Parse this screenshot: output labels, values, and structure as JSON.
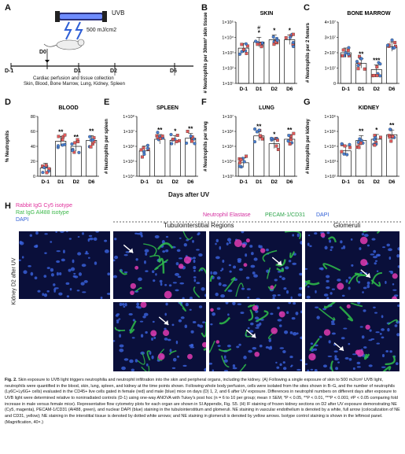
{
  "panelA": {
    "label": "A",
    "uvb": "UVB",
    "dose": "500 mJ/cm2",
    "d0": "D0",
    "days": [
      "D-1",
      "D1",
      "D2",
      "D6"
    ],
    "note1": "Cardiac perfusion and tissue collection",
    "note2": "Skin, Blood, Bone Marrow, Lung, Kidney, Spleen"
  },
  "days_after_uv": "Days after UV",
  "chart_data": [
    {
      "panel": "B",
      "type": "scatter",
      "title": "SKIN",
      "ylabel": "# Neutrophils per 30mm² skin tissue",
      "scale": "log",
      "ylim": [
        10,
        100000
      ],
      "yticks": [
        "1×10⁵",
        "1×10⁴",
        "1×10³",
        "1×10²",
        "1×10¹"
      ],
      "categories": [
        "D-1",
        "D1",
        "D2",
        "D6"
      ],
      "means": [
        2000,
        5000,
        7000,
        7000
      ],
      "sig": [
        "",
        "*",
        "*",
        "*"
      ],
      "extra_sig": [
        "",
        "#",
        "",
        ""
      ]
    },
    {
      "panel": "C",
      "type": "scatter",
      "title": "BONE MARROW",
      "ylabel": "# Neutrophils per 2 femurs",
      "scale": "linear",
      "ylim": [
        0,
        40000000
      ],
      "yticks": [
        "4×10⁷",
        "3×10⁷",
        "2×10⁷",
        "1×10⁷",
        "0"
      ],
      "categories": [
        "D-1",
        "D1",
        "D2",
        "D6"
      ],
      "means": [
        20000000,
        13000000,
        9000000,
        24000000
      ],
      "sig": [
        "",
        "**",
        "***",
        ""
      ]
    },
    {
      "panel": "D",
      "type": "scatter",
      "title": "BLOOD",
      "ylabel": "% Neutrophils",
      "scale": "linear",
      "ylim": [
        0,
        80
      ],
      "yticks": [
        "80",
        "60",
        "40",
        "20",
        "0"
      ],
      "categories": [
        "D-1",
        "D1",
        "D2",
        "D6"
      ],
      "means": [
        11,
        47,
        40,
        48
      ],
      "sig": [
        "",
        "**",
        "**",
        "**"
      ]
    },
    {
      "panel": "E",
      "type": "scatter",
      "title": "SPLEEN",
      "ylabel": "# Neutrophils per spleen",
      "scale": "log",
      "ylim": [
        10000,
        100000000
      ],
      "yticks": [
        "1×10⁸",
        "1×10⁷",
        "1×10⁶",
        "1×10⁵",
        "1×10⁴"
      ],
      "categories": [
        "D-1",
        "D1",
        "D2",
        "D6"
      ],
      "means": [
        500000,
        3000000,
        2500000,
        3500000
      ],
      "sig": [
        "",
        "**",
        "*",
        "**"
      ]
    },
    {
      "panel": "F",
      "type": "scatter",
      "title": "LUNG",
      "ylabel": "# Neutrophils per lung",
      "scale": "log",
      "ylim": [
        1000,
        10000000
      ],
      "yticks": [
        "1×10⁷",
        "1×10⁶",
        "1×10⁵",
        "1×10⁴",
        "1×10³"
      ],
      "categories": [
        "D-1",
        "D1",
        "D2",
        "D6"
      ],
      "means": [
        8000,
        500000,
        150000,
        300000
      ],
      "sig": [
        "",
        "**",
        "*",
        "**"
      ]
    },
    {
      "panel": "G",
      "type": "scatter",
      "title": "KIDNEY",
      "ylabel": "# Neutrophils per kidney",
      "scale": "log",
      "ylim": [
        100,
        1000000
      ],
      "yticks": [
        "1×10⁶",
        "1×10⁵",
        "1×10⁴",
        "1×10³",
        "1×10²"
      ],
      "categories": [
        "D-1",
        "D1",
        "D2",
        "D6"
      ],
      "means": [
        5000,
        25000,
        30000,
        60000
      ],
      "sig": [
        "",
        "**",
        "*",
        "**"
      ]
    }
  ],
  "panelH": {
    "label": "H",
    "legend_left": [
      "Rabbit IgG Cy5 isotype",
      "Rat IgG Al488 isotype",
      "DAPI"
    ],
    "legend_left_colors": [
      "#e0309c",
      "#3cb84a",
      "#2f5fd6"
    ],
    "legend_top": [
      "Neutrophil Elastase",
      "PECAM-1/CD31",
      "DAPI"
    ],
    "legend_top_colors": [
      "#d42fa0",
      "#2da44a",
      "#2f5fd6"
    ],
    "region1": "Tubulointerstitial Regions",
    "region2": "Glomeruli",
    "row_label": "Kidney D2 after UV"
  },
  "caption": {
    "lead": "Fig. 2.",
    "text1": "Skin exposure to UVB light triggers neutrophilia and neutrophil infiltration into the skin and peripheral organs, including the kidney. (A) Following a single exposure of skin to 500 mJ/cm² UVB light, neutrophils were quantified in the blood, skin, lung, spleen, and kidney at the time points shown. Following whole body perfusion, cells were isolated from the sites shown in B–G, and the number of neutrophils (Ly6C+Ly6G+ cells) evaluated in the CD45+ live cells gated in female (red) and male (blue) mice on days (D) 1, 2, and 6 after UV exposure. Differences in neutrophil numbers on different days after exposure to UVB light were determined relative to nonirradiated controls (D-1) using one-way ANOVA with Tukey's post hoc (n = 6 to 10 per group; mean ± SEM; *P < 0.05, **P < 0.01, ***P < 0.001; #P < 0.05 comparing fold increase in male versus female mice). Representative flow cytometry plots for each organ are shown in SI Appendix, Fig. S5. (H) IF staining of frozen kidney sections on D2 after UV exposure demonstrating NE (Cy5, magenta), PECAM-1/CD31 (Al488, green), and nuclear DAPI (blue) staining in the tubulointerstitium and glomeruli. NE staining in vascular endothelium is denoted by a white, full arrow (colocalization of NE and CD31, yellow); NE staining in the interstitial tissue is denoted by dotted white arrows; and NE staining in glomeruli is denoted by yellow arrows. Isotype control staining is shown in the leftmost panel. (Magnification, 40×.)"
  },
  "colors": {
    "female": "#e05b5b",
    "male": "#4a7fd1",
    "bg_micro": "#0a0f3a"
  }
}
